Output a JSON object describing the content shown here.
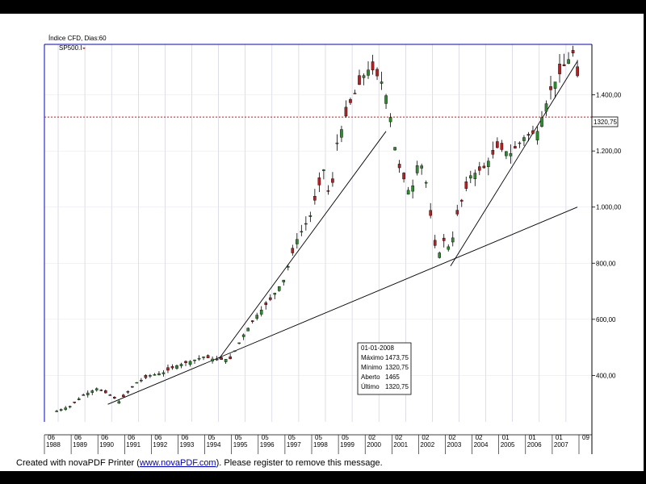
{
  "header": {
    "title": "Índice CFD, Dias:60",
    "symbol": "SP500.I"
  },
  "price_marker": "1320,75",
  "tooltip": {
    "date": "01-01-2008",
    "rows": [
      {
        "label": "Máximo",
        "value": "1473,75"
      },
      {
        "label": "Mínimo",
        "value": "1320,75"
      },
      {
        "label": "Aberto",
        "value": "1465"
      },
      {
        "label": "Último",
        "value": "1320,75"
      }
    ]
  },
  "footer": {
    "prefix": "Created with novaPDF Printer (",
    "link": "www.novaPDF.com",
    "suffix": "). Please register to remove this message."
  },
  "colors": {
    "up_candle": "#2e8b2e",
    "down_candle": "#b22222",
    "reference_line": "#ff0000",
    "grid": "#c8c8d8",
    "frame": "#0000cc"
  },
  "chart_data": {
    "type": "candlestick",
    "title": "Índice CFD, Dias:60",
    "ylim": [
      230,
      1570
    ],
    "y_ticks": [
      400,
      600,
      800,
      1000,
      1200,
      1400
    ],
    "y_tick_labels": [
      "400,00",
      "600,00",
      "800,00",
      "1.000,00",
      "1.200,00",
      "1.400,00"
    ],
    "x_month_labels": [
      "06",
      "06",
      "06",
      "06",
      "06",
      "06",
      "05",
      "05",
      "05",
      "05",
      "05",
      "05",
      "02",
      "02",
      "02",
      "02",
      "02",
      "01",
      "01",
      "01",
      "09"
    ],
    "x_year_labels": [
      "1988",
      "1989",
      "1990",
      "1991",
      "1992",
      "1993",
      "1994",
      "1995",
      "1996",
      "1997",
      "1998",
      "1999",
      "2000",
      "2001",
      "2002",
      "2003",
      "2004",
      "2005",
      "2006",
      "2007"
    ],
    "grid": true,
    "reference_line": {
      "value": 1320.75,
      "label": "1320,75"
    },
    "trendlines": [
      {
        "from": [
          "1990-05",
          297
        ],
        "to": [
          "2007-12",
          1000
        ]
      },
      {
        "from": [
          "1994-07",
          460
        ],
        "to": [
          "2000-10",
          1270
        ]
      },
      {
        "from": [
          "2003-03",
          790
        ],
        "to": [
          "2007-12",
          1520
        ]
      }
    ],
    "candles_sampled": [
      {
        "date": "1988-06",
        "close": 273
      },
      {
        "date": "1988-12",
        "close": 290
      },
      {
        "date": "1989-06",
        "close": 330
      },
      {
        "date": "1989-12",
        "close": 353
      },
      {
        "date": "1990-06",
        "close": 330
      },
      {
        "date": "1990-10",
        "close": 307
      },
      {
        "date": "1991-06",
        "close": 375
      },
      {
        "date": "1991-12",
        "close": 400
      },
      {
        "date": "1992-06",
        "close": 410
      },
      {
        "date": "1992-12",
        "close": 435
      },
      {
        "date": "1993-06",
        "close": 450
      },
      {
        "date": "1993-12",
        "close": 466
      },
      {
        "date": "1994-06",
        "close": 455
      },
      {
        "date": "1994-12",
        "close": 459
      },
      {
        "date": "1995-06",
        "close": 545
      },
      {
        "date": "1995-12",
        "close": 615
      },
      {
        "date": "1996-06",
        "close": 670
      },
      {
        "date": "1996-12",
        "close": 740
      },
      {
        "date": "1997-06",
        "close": 885
      },
      {
        "date": "1997-12",
        "close": 970
      },
      {
        "date": "1998-06",
        "close": 1133
      },
      {
        "date": "1998-09",
        "close": 1017
      },
      {
        "date": "1998-12",
        "close": 1229
      },
      {
        "date": "1999-06",
        "close": 1372
      },
      {
        "date": "1999-12",
        "close": 1469
      },
      {
        "date": "2000-03",
        "close": 1499
      },
      {
        "date": "2000-09",
        "close": 1436
      },
      {
        "date": "2000-12",
        "close": 1320
      },
      {
        "date": "2001-03",
        "close": 1160
      },
      {
        "date": "2001-09",
        "close": 1040
      },
      {
        "date": "2001-12",
        "close": 1148
      },
      {
        "date": "2002-03",
        "close": 1147
      },
      {
        "date": "2002-07",
        "close": 911
      },
      {
        "date": "2002-09",
        "close": 815
      },
      {
        "date": "2002-12",
        "close": 880
      },
      {
        "date": "2003-03",
        "close": 848
      },
      {
        "date": "2003-06",
        "close": 975
      },
      {
        "date": "2003-12",
        "close": 1112
      },
      {
        "date": "2004-06",
        "close": 1140
      },
      {
        "date": "2004-12",
        "close": 1212
      },
      {
        "date": "2005-06",
        "close": 1191
      },
      {
        "date": "2005-12",
        "close": 1248
      },
      {
        "date": "2006-06",
        "close": 1270
      },
      {
        "date": "2006-12",
        "close": 1418
      },
      {
        "date": "2007-06",
        "close": 1503
      },
      {
        "date": "2007-10",
        "close": 1549
      },
      {
        "date": "2007-12",
        "close": 1468
      },
      {
        "date": "2008-01",
        "open": 1465,
        "high": 1473.75,
        "low": 1320.75,
        "close": 1320.75
      }
    ]
  }
}
